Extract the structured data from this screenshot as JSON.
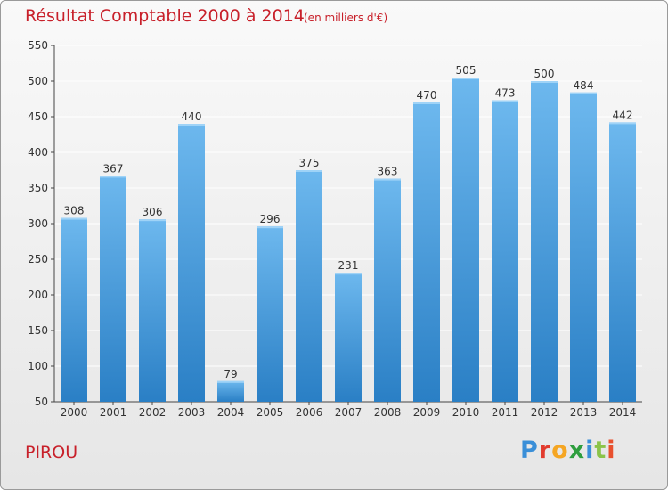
{
  "header": {
    "title": "Résultat Comptable 2000 à 2014",
    "subtitle": "(en milliers d'€)"
  },
  "footer": {
    "commune": "PIROU",
    "logo_letters": [
      "P",
      "r",
      "o",
      "x",
      "i",
      "t",
      "i"
    ],
    "logo_colors": [
      "#3a8fd8",
      "#e23b2e",
      "#f5a623",
      "#2e9e3e",
      "#3a8fd8",
      "#8bc34a",
      "#e8502e"
    ]
  },
  "colors": {
    "bar_light": "#6db8ee",
    "bar_dark": "#2a7fc5",
    "grid": "#ffffff",
    "text": "#333333",
    "title": "#c8202a"
  },
  "chart_data": {
    "type": "bar",
    "title": "Résultat Comptable 2000 à 2014",
    "subtitle": "(en milliers d'€)",
    "xlabel": "",
    "ylabel": "",
    "categories": [
      "2000",
      "2001",
      "2002",
      "2003",
      "2004",
      "2005",
      "2006",
      "2007",
      "2008",
      "2009",
      "2010",
      "2011",
      "2012",
      "2013",
      "2014"
    ],
    "values": [
      308,
      367,
      306,
      440,
      79,
      296,
      375,
      231,
      363,
      470,
      505,
      473,
      500,
      484,
      442
    ],
    "ylim": [
      50,
      550
    ],
    "yticks": [
      50,
      100,
      150,
      200,
      250,
      300,
      350,
      400,
      450,
      500,
      550
    ],
    "grid": true,
    "legend": "none"
  }
}
